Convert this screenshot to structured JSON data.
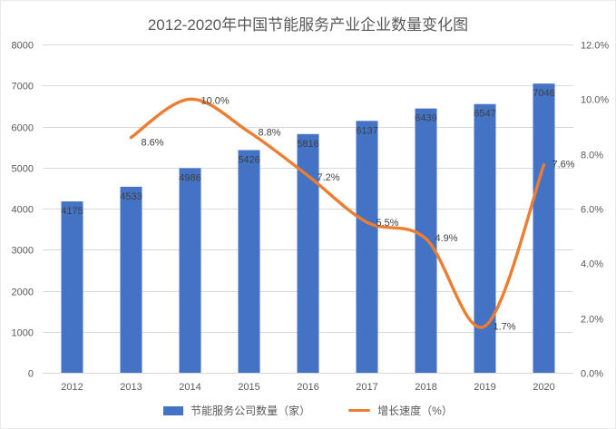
{
  "title": "2012-2020年中国节能服务产业企业数量变化图",
  "chart_data": {
    "type": "bar",
    "combo": "bar+smooth-line",
    "title": "2012-2020年中国节能服务产业企业数量变化图",
    "categories": [
      "2012",
      "2013",
      "2014",
      "2015",
      "2016",
      "2017",
      "2018",
      "2019",
      "2020"
    ],
    "series": [
      {
        "name": "节能服务公司数量（家）",
        "type": "bar",
        "axis": "left",
        "color": "#4472C4",
        "values": [
          4175,
          4533,
          4986,
          5426,
          5816,
          6137,
          6439,
          6547,
          7046
        ],
        "data_labels": [
          "4175",
          "4533",
          "4986",
          "5426",
          "5816",
          "6137",
          "6439",
          "6547",
          "7046"
        ]
      },
      {
        "name": "增长速度（%）",
        "type": "line",
        "axis": "right",
        "color": "#ED7D31",
        "values": [
          null,
          8.6,
          10.0,
          8.8,
          7.2,
          5.5,
          4.9,
          1.7,
          7.6
        ],
        "point_labels": [
          null,
          "8.6%",
          "10.0%",
          "8.8%",
          "7.2%",
          "5.5%",
          "4.9%",
          "1.7%",
          "7.6%"
        ]
      }
    ],
    "left_axis": {
      "min": 0,
      "max": 8000,
      "step": 1000,
      "tick_labels": [
        "0",
        "1000",
        "2000",
        "3000",
        "4000",
        "5000",
        "6000",
        "7000",
        "8000"
      ]
    },
    "right_axis": {
      "min": 0,
      "max": 12,
      "step": 2,
      "tick_labels": [
        "0.0%",
        "2.0%",
        "4.0%",
        "6.0%",
        "8.0%",
        "10.0%",
        "12.0%"
      ]
    },
    "grid": true,
    "legend_position": "bottom"
  },
  "colors": {
    "bar": "#4472C4",
    "line": "#ED7D31",
    "grid": "#D9D9D9",
    "axis_text": "#595959",
    "data_label": "#404040",
    "background": "#FFFFFF"
  }
}
